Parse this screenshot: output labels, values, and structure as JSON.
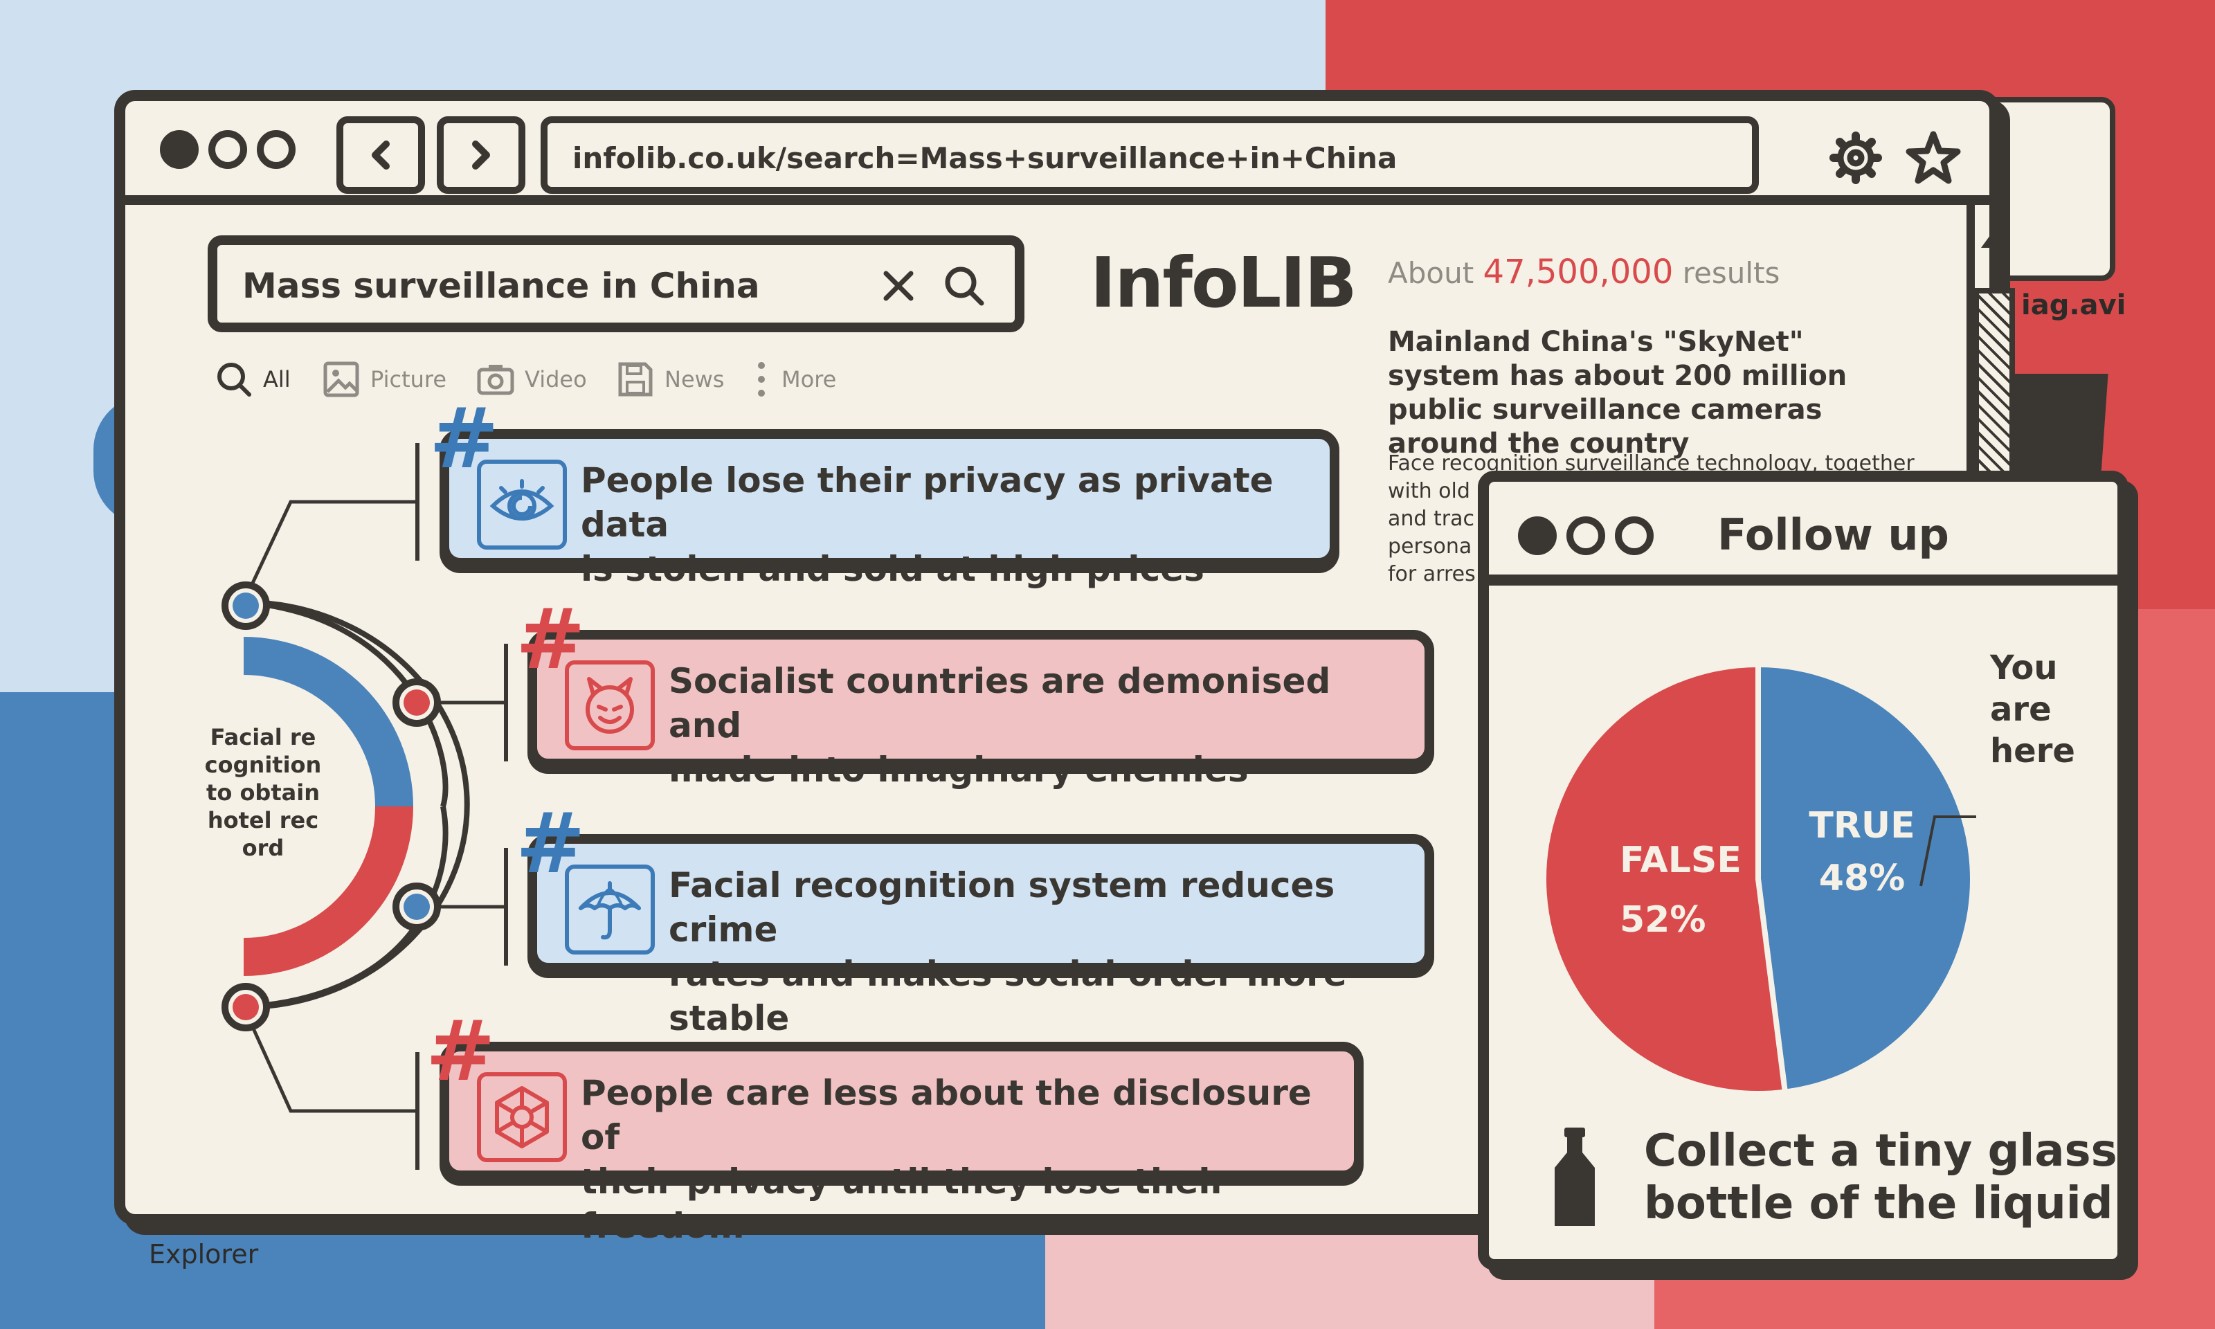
{
  "background": {
    "label": "Explorer",
    "file_label": "iag.avi"
  },
  "browser": {
    "url": "infolib.co.uk/search=Mass+surveillance+in+China",
    "nav_back_icon": "chevron-left-icon",
    "nav_forward_icon": "chevron-right-icon",
    "settings_icon": "gear-icon",
    "bookmark_icon": "star-icon"
  },
  "search": {
    "query": "Mass surveillance in China",
    "clear_icon": "close-icon",
    "search_icon": "search-icon"
  },
  "logo": "InfoLIB",
  "filters": [
    {
      "label": "All",
      "icon": "search-icon",
      "active": true
    },
    {
      "label": "Picture",
      "icon": "image-icon",
      "active": false
    },
    {
      "label": "Video",
      "icon": "camera-icon",
      "active": false
    },
    {
      "label": "News",
      "icon": "save-icon",
      "active": false
    },
    {
      "label": "More",
      "icon": "more-vertical-icon",
      "active": false
    }
  ],
  "results": {
    "prefix": "About",
    "count": "47,500,000",
    "suffix": "results",
    "headline": "Mainland China's \"SkyNet\" system has about 200 million public surveillance cameras around the country",
    "snippet": "Face recognition surveillance technology, together\nwith old\nand trac\npersona\nfor arres"
  },
  "arc": {
    "label": "Facial recognition to obtain hotel record",
    "colors": {
      "blue": "#4a84bb",
      "red": "#d84a4b"
    }
  },
  "cards": [
    {
      "text_line1": "People lose their privacy as private data",
      "text_line2": "is stolen and sold at high prices",
      "icon": "eye-icon",
      "color": "blue"
    },
    {
      "text_line1": "Socialist countries are demonised and",
      "text_line2": "made into imaginary enemies",
      "icon": "devil-face-icon",
      "color": "pink"
    },
    {
      "text_line1": "Facial recognition system reduces crime",
      "text_line2": "rates and makes social order more stable",
      "icon": "umbrella-icon",
      "color": "blue"
    },
    {
      "text_line1": "People care less about the disclosure of",
      "text_line2": "their privacy until they lose their freedom",
      "icon": "aperture-icon",
      "color": "pink"
    }
  ],
  "hash_symbol": "#",
  "popup": {
    "title": "Follow up",
    "pointer_label_line1": "You",
    "pointer_label_line2": "are",
    "pointer_label_line3": "here",
    "collect_line1": "Collect a tiny glass",
    "collect_line2": "bottle of the liquid",
    "bottle_icon": "bottle-icon"
  },
  "chart_data": {
    "type": "pie",
    "slices": [
      {
        "label": "TRUE",
        "value": 48,
        "display": "48%",
        "color": "#4a84bb"
      },
      {
        "label": "FALSE",
        "value": 52,
        "display": "52%",
        "color": "#d84a4b"
      }
    ]
  }
}
